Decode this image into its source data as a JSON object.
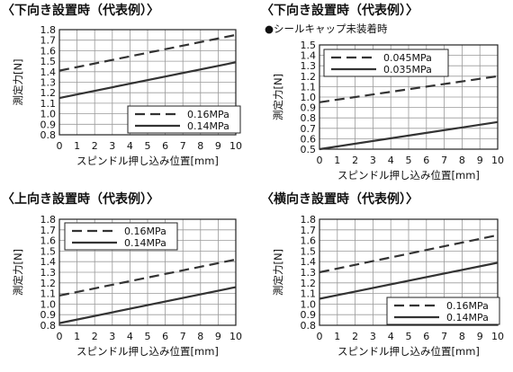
{
  "chart_data": [
    {
      "type": "line",
      "title": "〈下向き設置時（代表例）〉",
      "subtitle": "",
      "xlabel": "スピンドル押し込み位置[mm]",
      "ylabel": "測定力[N]",
      "xlim": [
        0,
        10
      ],
      "ylim": [
        0.8,
        1.8
      ],
      "xticks": [
        "0",
        "1",
        "2",
        "3",
        "4",
        "5",
        "6",
        "7",
        "8",
        "9",
        "10"
      ],
      "yticks": [
        "0.8",
        "0.9",
        "1.0",
        "1.1",
        "1.2",
        "1.3",
        "1.4",
        "1.5",
        "1.6",
        "1.7",
        "1.8"
      ],
      "grid": true,
      "legend_position": "bottom-right",
      "series": [
        {
          "name": "0.16MPa",
          "style": "dashed",
          "x": [
            0,
            10
          ],
          "y": [
            1.41,
            1.75
          ]
        },
        {
          "name": "0.14MPa",
          "style": "solid",
          "x": [
            0,
            10
          ],
          "y": [
            1.15,
            1.49
          ]
        }
      ]
    },
    {
      "type": "line",
      "title": "〈下向き設置時（代表例）〉",
      "subtitle": "●シールキャップ未装着時",
      "xlabel": "スピンドル押し込み位置[mm]",
      "ylabel": "測定力[N]",
      "xlim": [
        0,
        10
      ],
      "ylim": [
        0.5,
        1.5
      ],
      "xticks": [
        "0",
        "1",
        "2",
        "3",
        "4",
        "5",
        "6",
        "7",
        "8",
        "9",
        "10"
      ],
      "yticks": [
        "0.5",
        "0.6",
        "0.7",
        "0.8",
        "0.9",
        "1.0",
        "1.1",
        "1.2",
        "1.3",
        "1.4",
        "1.5"
      ],
      "grid": true,
      "legend_position": "top-left",
      "series": [
        {
          "name": "0.045MPa",
          "style": "dashed",
          "x": [
            0,
            10
          ],
          "y": [
            0.95,
            1.2
          ]
        },
        {
          "name": "0.035MPa",
          "style": "solid",
          "x": [
            0,
            10
          ],
          "y": [
            0.5,
            0.76
          ]
        }
      ]
    },
    {
      "type": "line",
      "title": "〈上向き設置時（代表例）〉",
      "subtitle": "",
      "xlabel": "スピンドル押し込み位置[mm]",
      "ylabel": "測定力[N]",
      "xlim": [
        0,
        10
      ],
      "ylim": [
        0.8,
        1.8
      ],
      "xticks": [
        "0",
        "1",
        "2",
        "3",
        "4",
        "5",
        "6",
        "7",
        "8",
        "9",
        "10"
      ],
      "yticks": [
        "0.8",
        "0.9",
        "1.0",
        "1.1",
        "1.2",
        "1.3",
        "1.4",
        "1.5",
        "1.6",
        "1.7",
        "1.8"
      ],
      "grid": true,
      "legend_position": "top-left",
      "series": [
        {
          "name": "0.16MPa",
          "style": "dashed",
          "x": [
            0,
            10
          ],
          "y": [
            1.08,
            1.42
          ]
        },
        {
          "name": "0.14MPa",
          "style": "solid",
          "x": [
            0,
            10
          ],
          "y": [
            0.82,
            1.16
          ]
        }
      ]
    },
    {
      "type": "line",
      "title": "〈横向き設置時（代表例）〉",
      "subtitle": "",
      "xlabel": "スピンドル押し込み位置[mm]",
      "ylabel": "測定力[N]",
      "xlim": [
        0,
        10
      ],
      "ylim": [
        0.8,
        1.8
      ],
      "xticks": [
        "0",
        "1",
        "2",
        "3",
        "4",
        "5",
        "6",
        "7",
        "8",
        "9",
        "10"
      ],
      "yticks": [
        "0.8",
        "0.9",
        "1.0",
        "1.1",
        "1.2",
        "1.3",
        "1.4",
        "1.5",
        "1.6",
        "1.7",
        "1.8"
      ],
      "grid": true,
      "legend_position": "bottom-right",
      "series": [
        {
          "name": "0.16MPa",
          "style": "dashed",
          "x": [
            0,
            10
          ],
          "y": [
            1.3,
            1.65
          ]
        },
        {
          "name": "0.14MPa",
          "style": "solid",
          "x": [
            0,
            10
          ],
          "y": [
            1.05,
            1.39
          ]
        }
      ]
    }
  ]
}
